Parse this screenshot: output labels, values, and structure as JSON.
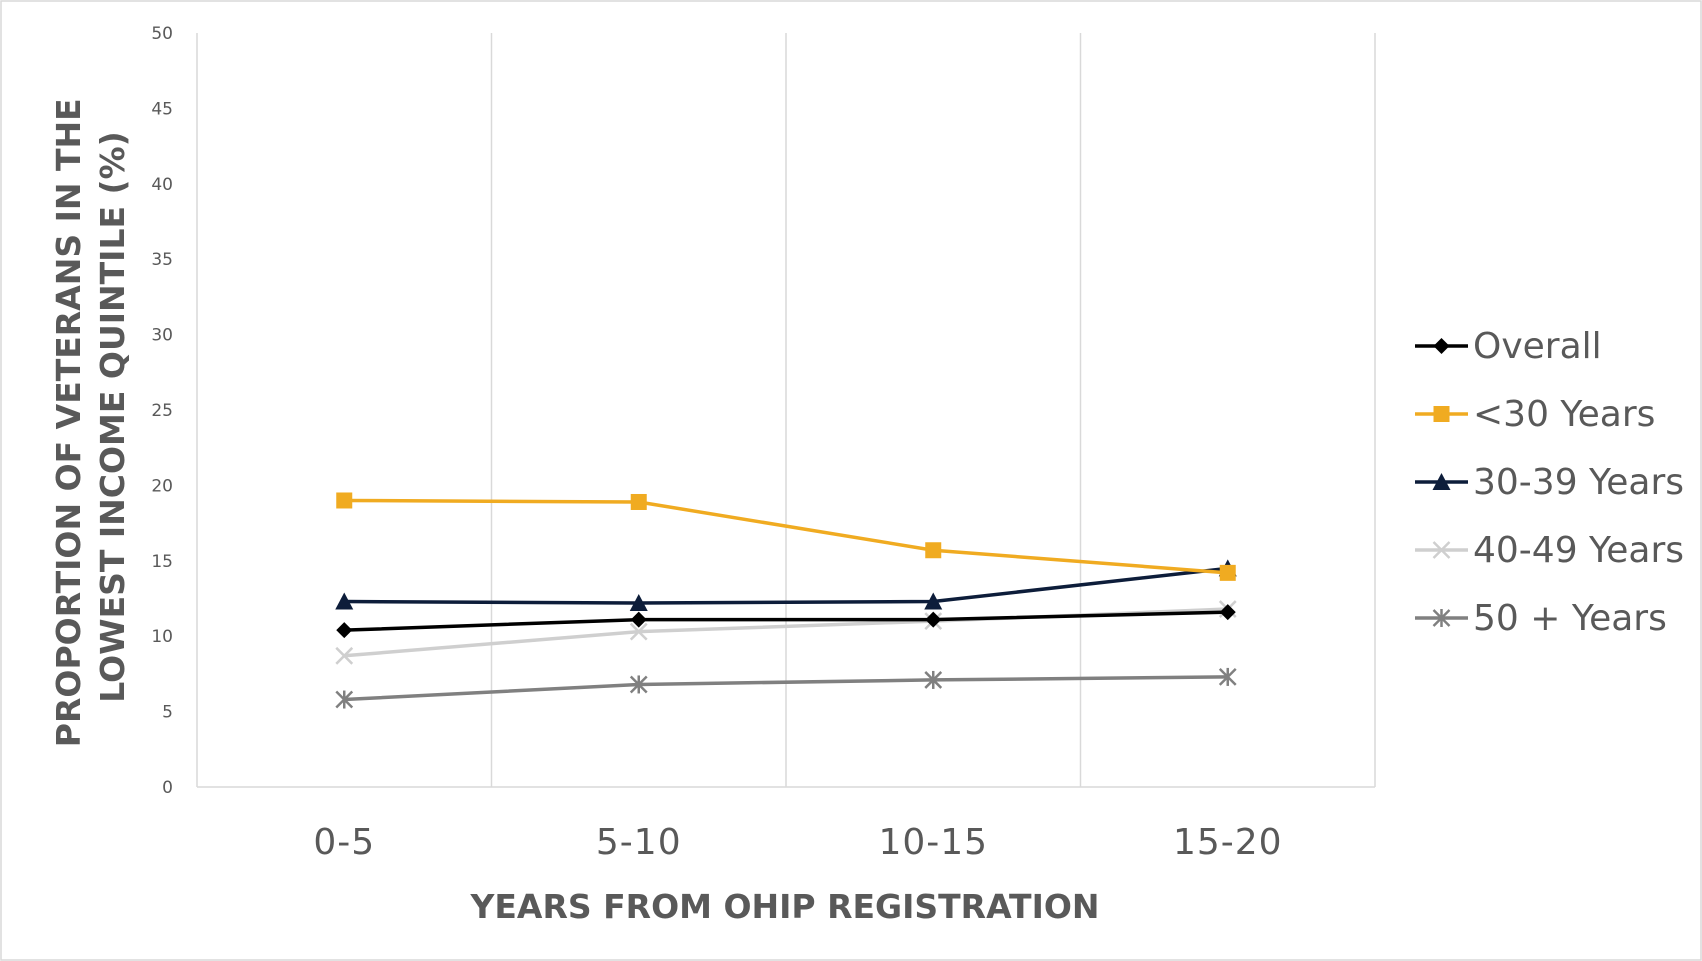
{
  "chart_data": {
    "type": "line",
    "title": "",
    "xlabel": "YEARS FROM OHIP REGISTRATION",
    "ylabel_lines": [
      "PROPORTION OF VETERANS IN THE",
      "LOWEST INCOME QUINTILE (%)"
    ],
    "categories": [
      "0-5",
      "5-10",
      "10-15",
      "15-20"
    ],
    "ylim": [
      0,
      50
    ],
    "yticks": [
      "0",
      "5",
      "10",
      "15",
      "20",
      "25",
      "30",
      "35",
      "40",
      "45",
      "50"
    ],
    "grid": "vertical",
    "legend_position": "right",
    "series": [
      {
        "name": "Overall",
        "values": [
          10.4,
          11.1,
          11.1,
          11.6
        ],
        "color": "#000000",
        "marker": "diamond"
      },
      {
        "name": "<30 Years",
        "values": [
          19.0,
          18.9,
          15.7,
          14.2
        ],
        "color": "#f0ab21",
        "marker": "square"
      },
      {
        "name": "30-39 Years",
        "values": [
          12.3,
          12.2,
          12.3,
          14.5
        ],
        "color": "#0d1d3a",
        "marker": "triangle"
      },
      {
        "name": "40-49 Years",
        "values": [
          8.7,
          10.3,
          11.0,
          11.8
        ],
        "color": "#cfcfcf",
        "marker": "x"
      },
      {
        "name": "50 + Years",
        "values": [
          5.8,
          6.8,
          7.1,
          7.3
        ],
        "color": "#808080",
        "marker": "asterisk"
      }
    ]
  }
}
